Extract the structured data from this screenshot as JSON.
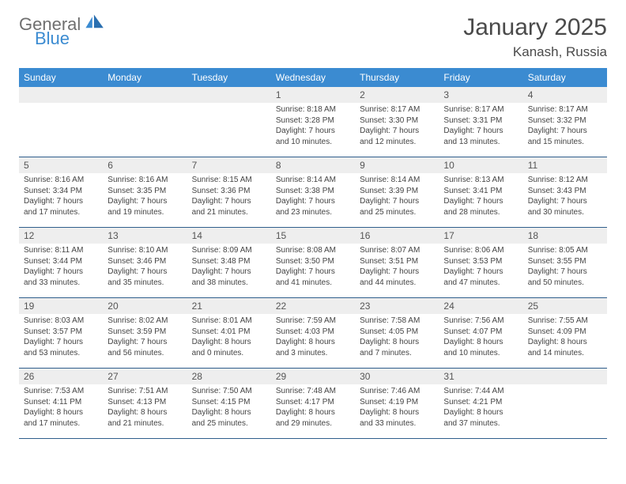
{
  "brand": {
    "part1": "General",
    "part2": "Blue"
  },
  "title": "January 2025",
  "location": "Kanash, Russia",
  "colors": {
    "header_bg": "#3b8bd1",
    "header_fg": "#ffffff",
    "daynum_bg": "#eeeeee",
    "row_border": "#2f5e8c",
    "text": "#444444",
    "title_color": "#4a4a4a"
  },
  "day_labels": [
    "Sunday",
    "Monday",
    "Tuesday",
    "Wednesday",
    "Thursday",
    "Friday",
    "Saturday"
  ],
  "weeks": [
    [
      {
        "n": "",
        "sr": "",
        "ss": "",
        "dl": ""
      },
      {
        "n": "",
        "sr": "",
        "ss": "",
        "dl": ""
      },
      {
        "n": "",
        "sr": "",
        "ss": "",
        "dl": ""
      },
      {
        "n": "1",
        "sr": "8:18 AM",
        "ss": "3:28 PM",
        "dl": "7 hours and 10 minutes."
      },
      {
        "n": "2",
        "sr": "8:17 AM",
        "ss": "3:30 PM",
        "dl": "7 hours and 12 minutes."
      },
      {
        "n": "3",
        "sr": "8:17 AM",
        "ss": "3:31 PM",
        "dl": "7 hours and 13 minutes."
      },
      {
        "n": "4",
        "sr": "8:17 AM",
        "ss": "3:32 PM",
        "dl": "7 hours and 15 minutes."
      }
    ],
    [
      {
        "n": "5",
        "sr": "8:16 AM",
        "ss": "3:34 PM",
        "dl": "7 hours and 17 minutes."
      },
      {
        "n": "6",
        "sr": "8:16 AM",
        "ss": "3:35 PM",
        "dl": "7 hours and 19 minutes."
      },
      {
        "n": "7",
        "sr": "8:15 AM",
        "ss": "3:36 PM",
        "dl": "7 hours and 21 minutes."
      },
      {
        "n": "8",
        "sr": "8:14 AM",
        "ss": "3:38 PM",
        "dl": "7 hours and 23 minutes."
      },
      {
        "n": "9",
        "sr": "8:14 AM",
        "ss": "3:39 PM",
        "dl": "7 hours and 25 minutes."
      },
      {
        "n": "10",
        "sr": "8:13 AM",
        "ss": "3:41 PM",
        "dl": "7 hours and 28 minutes."
      },
      {
        "n": "11",
        "sr": "8:12 AM",
        "ss": "3:43 PM",
        "dl": "7 hours and 30 minutes."
      }
    ],
    [
      {
        "n": "12",
        "sr": "8:11 AM",
        "ss": "3:44 PM",
        "dl": "7 hours and 33 minutes."
      },
      {
        "n": "13",
        "sr": "8:10 AM",
        "ss": "3:46 PM",
        "dl": "7 hours and 35 minutes."
      },
      {
        "n": "14",
        "sr": "8:09 AM",
        "ss": "3:48 PM",
        "dl": "7 hours and 38 minutes."
      },
      {
        "n": "15",
        "sr": "8:08 AM",
        "ss": "3:50 PM",
        "dl": "7 hours and 41 minutes."
      },
      {
        "n": "16",
        "sr": "8:07 AM",
        "ss": "3:51 PM",
        "dl": "7 hours and 44 minutes."
      },
      {
        "n": "17",
        "sr": "8:06 AM",
        "ss": "3:53 PM",
        "dl": "7 hours and 47 minutes."
      },
      {
        "n": "18",
        "sr": "8:05 AM",
        "ss": "3:55 PM",
        "dl": "7 hours and 50 minutes."
      }
    ],
    [
      {
        "n": "19",
        "sr": "8:03 AM",
        "ss": "3:57 PM",
        "dl": "7 hours and 53 minutes."
      },
      {
        "n": "20",
        "sr": "8:02 AM",
        "ss": "3:59 PM",
        "dl": "7 hours and 56 minutes."
      },
      {
        "n": "21",
        "sr": "8:01 AM",
        "ss": "4:01 PM",
        "dl": "8 hours and 0 minutes."
      },
      {
        "n": "22",
        "sr": "7:59 AM",
        "ss": "4:03 PM",
        "dl": "8 hours and 3 minutes."
      },
      {
        "n": "23",
        "sr": "7:58 AM",
        "ss": "4:05 PM",
        "dl": "8 hours and 7 minutes."
      },
      {
        "n": "24",
        "sr": "7:56 AM",
        "ss": "4:07 PM",
        "dl": "8 hours and 10 minutes."
      },
      {
        "n": "25",
        "sr": "7:55 AM",
        "ss": "4:09 PM",
        "dl": "8 hours and 14 minutes."
      }
    ],
    [
      {
        "n": "26",
        "sr": "7:53 AM",
        "ss": "4:11 PM",
        "dl": "8 hours and 17 minutes."
      },
      {
        "n": "27",
        "sr": "7:51 AM",
        "ss": "4:13 PM",
        "dl": "8 hours and 21 minutes."
      },
      {
        "n": "28",
        "sr": "7:50 AM",
        "ss": "4:15 PM",
        "dl": "8 hours and 25 minutes."
      },
      {
        "n": "29",
        "sr": "7:48 AM",
        "ss": "4:17 PM",
        "dl": "8 hours and 29 minutes."
      },
      {
        "n": "30",
        "sr": "7:46 AM",
        "ss": "4:19 PM",
        "dl": "8 hours and 33 minutes."
      },
      {
        "n": "31",
        "sr": "7:44 AM",
        "ss": "4:21 PM",
        "dl": "8 hours and 37 minutes."
      },
      {
        "n": "",
        "sr": "",
        "ss": "",
        "dl": ""
      }
    ]
  ],
  "labels": {
    "sunrise": "Sunrise:",
    "sunset": "Sunset:",
    "daylight": "Daylight:"
  }
}
